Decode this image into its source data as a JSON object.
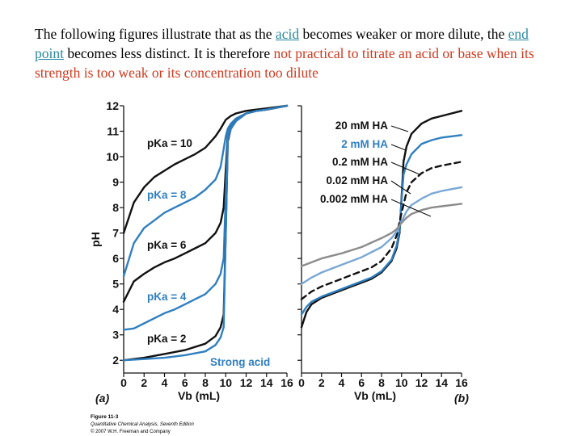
{
  "caption": {
    "part1": "The following figures illustrate that as the ",
    "link1": "acid",
    "part2": " becomes weaker or more dilute, the ",
    "link2": "end point",
    "part3": " becomes less distinct. It is therefore ",
    "warning": "not practical to titrate an acid or base when its strength is too weak or its concentration too dilute"
  },
  "figure_caption": {
    "title": "Figure 11-3",
    "book": "Quantitative Chemical Analysis, Seventh Edition",
    "copyright": "© 2007 W.H. Freeman and Company"
  },
  "colors": {
    "black": "#111111",
    "blue": "#2f7fc1",
    "light_blue": "#7aa8d6",
    "gray": "#8c8c8c"
  },
  "chart_data": [
    {
      "panel": "(a)",
      "type": "line",
      "xlabel": "Vb (mL)",
      "ylabel": "pH",
      "xlim": [
        0,
        16
      ],
      "ylim": [
        1.5,
        12
      ],
      "xticks": [
        0,
        2,
        4,
        6,
        8,
        10,
        12,
        14,
        16
      ],
      "yticks": [
        2,
        3,
        4,
        5,
        6,
        7,
        8,
        9,
        10,
        11,
        12
      ],
      "series": [
        {
          "name": "pKa = 10",
          "color": "#111111",
          "x": [
            0,
            1,
            2,
            3,
            4,
            5,
            6,
            7,
            8,
            9,
            9.5,
            10,
            10.5,
            11,
            12,
            13,
            14,
            16
          ],
          "y": [
            7.0,
            8.2,
            8.8,
            9.2,
            9.45,
            9.7,
            9.9,
            10.1,
            10.35,
            10.8,
            11.1,
            11.45,
            11.6,
            11.7,
            11.8,
            11.85,
            11.9,
            12.0
          ]
        },
        {
          "name": "pKa = 8",
          "color": "#2f7fc1",
          "x": [
            0,
            1,
            2,
            3,
            4,
            5,
            6,
            7,
            8,
            9,
            9.5,
            9.8,
            10,
            10.2,
            10.5,
            11,
            12,
            13,
            14,
            16
          ],
          "y": [
            5.3,
            6.6,
            7.2,
            7.5,
            7.8,
            8.0,
            8.2,
            8.4,
            8.7,
            9.1,
            9.6,
            10.3,
            10.8,
            11.1,
            11.3,
            11.5,
            11.7,
            11.8,
            11.85,
            12.0
          ]
        },
        {
          "name": "pKa = 6",
          "color": "#111111",
          "x": [
            0,
            1,
            2,
            3,
            4,
            5,
            6,
            7,
            8,
            9,
            9.5,
            9.8,
            10,
            10.2,
            10.5,
            11,
            12,
            13,
            14,
            16
          ],
          "y": [
            4.3,
            5.1,
            5.4,
            5.65,
            5.85,
            6.0,
            6.2,
            6.4,
            6.6,
            7.0,
            7.4,
            8.0,
            9.5,
            10.9,
            11.2,
            11.45,
            11.7,
            11.8,
            11.85,
            12.0
          ]
        },
        {
          "name": "pKa = 4",
          "color": "#2f7fc1",
          "x": [
            0,
            1,
            2,
            3,
            4,
            5,
            6,
            7,
            8,
            9,
            9.5,
            9.8,
            10,
            10.2,
            10.5,
            11,
            12,
            13,
            14,
            16
          ],
          "y": [
            3.2,
            3.25,
            3.45,
            3.65,
            3.85,
            4.0,
            4.2,
            4.4,
            4.6,
            5.0,
            5.4,
            6.0,
            8.5,
            10.9,
            11.2,
            11.45,
            11.7,
            11.8,
            11.85,
            12.0
          ]
        },
        {
          "name": "pKa = 2",
          "color": "#111111",
          "x": [
            0,
            2,
            4,
            6,
            8,
            9,
            9.5,
            9.8,
            10,
            10.2,
            10.5,
            11,
            12,
            13,
            14,
            16
          ],
          "y": [
            2.0,
            2.1,
            2.25,
            2.4,
            2.65,
            2.95,
            3.3,
            3.8,
            7.0,
            10.6,
            11.1,
            11.4,
            11.7,
            11.8,
            11.85,
            12.0
          ]
        },
        {
          "name": "Strong acid",
          "color": "#2f7fc1",
          "x": [
            0,
            2,
            4,
            6,
            8,
            9,
            9.5,
            9.8,
            10,
            10.2,
            10.5,
            11,
            12,
            13,
            14,
            16
          ],
          "y": [
            2.0,
            2.05,
            2.1,
            2.2,
            2.35,
            2.6,
            2.9,
            3.3,
            7.0,
            10.7,
            11.1,
            11.4,
            11.7,
            11.8,
            11.85,
            12.0
          ]
        }
      ],
      "labels": [
        "pKa = 10",
        "pKa = 8",
        "pKa = 6",
        "pKa = 4",
        "pKa = 2",
        "Strong acid"
      ]
    },
    {
      "panel": "(b)",
      "type": "line",
      "xlabel": "Vb (mL)",
      "ylabel": "pH",
      "xlim": [
        0,
        16
      ],
      "ylim": [
        1.5,
        12
      ],
      "xticks": [
        0,
        2,
        4,
        6,
        8,
        10,
        12,
        14,
        16
      ],
      "yticks": [
        2,
        3,
        4,
        5,
        6,
        7,
        8,
        9,
        10,
        11,
        12
      ],
      "series": [
        {
          "name": "20 mM HA",
          "color": "#111111",
          "dash": false,
          "x": [
            0,
            0.5,
            1,
            2,
            3,
            4,
            5,
            6,
            7,
            8,
            9,
            9.5,
            9.8,
            10,
            10.2,
            10.5,
            11,
            12,
            13,
            14,
            16
          ],
          "y": [
            3.3,
            3.9,
            4.2,
            4.45,
            4.6,
            4.75,
            4.9,
            5.05,
            5.2,
            5.45,
            5.9,
            6.4,
            7.0,
            8.4,
            9.8,
            10.4,
            10.9,
            11.3,
            11.5,
            11.6,
            11.8
          ]
        },
        {
          "name": "2 mM HA",
          "color": "#2f7fc1",
          "dash": false,
          "x": [
            0,
            0.5,
            1,
            2,
            3,
            4,
            5,
            6,
            7,
            8,
            9,
            9.5,
            9.8,
            10,
            10.2,
            10.5,
            11,
            12,
            13,
            14,
            16
          ],
          "y": [
            3.8,
            4.1,
            4.3,
            4.5,
            4.65,
            4.8,
            4.95,
            5.1,
            5.25,
            5.5,
            5.95,
            6.5,
            7.1,
            8.3,
            9.3,
            9.7,
            10.1,
            10.5,
            10.65,
            10.75,
            10.85
          ]
        },
        {
          "name": "0.2 mM HA",
          "color": "#111111",
          "dash": true,
          "x": [
            0,
            1,
            2,
            3,
            4,
            5,
            6,
            7,
            8,
            9,
            9.5,
            10,
            10.5,
            11,
            12,
            13,
            14,
            16
          ],
          "y": [
            4.4,
            4.7,
            4.9,
            5.05,
            5.2,
            5.35,
            5.5,
            5.65,
            5.9,
            6.4,
            6.9,
            7.8,
            8.6,
            9.0,
            9.35,
            9.55,
            9.65,
            9.8
          ]
        },
        {
          "name": "0.02 mM HA",
          "color": "#7aa8d6",
          "dash": false,
          "x": [
            0,
            1,
            2,
            4,
            6,
            8,
            9,
            9.5,
            10,
            10.5,
            11,
            12,
            13,
            14,
            16
          ],
          "y": [
            5.0,
            5.25,
            5.45,
            5.75,
            6.05,
            6.45,
            6.8,
            7.05,
            7.45,
            7.85,
            8.1,
            8.35,
            8.55,
            8.65,
            8.8
          ]
        },
        {
          "name": "0.002 mM HA",
          "color": "#8c8c8c",
          "dash": false,
          "x": [
            0,
            1,
            2,
            4,
            6,
            8,
            9,
            9.5,
            10,
            10.5,
            11,
            12,
            13,
            14,
            16
          ],
          "y": [
            5.7,
            5.85,
            6.0,
            6.2,
            6.45,
            6.8,
            7.0,
            7.15,
            7.4,
            7.6,
            7.75,
            7.9,
            8.0,
            8.05,
            8.15
          ]
        }
      ],
      "labels": [
        "20 mM HA",
        "2 mM HA",
        "0.2 mM HA",
        "0.02 mM HA",
        "0.002 mM HA"
      ]
    }
  ]
}
